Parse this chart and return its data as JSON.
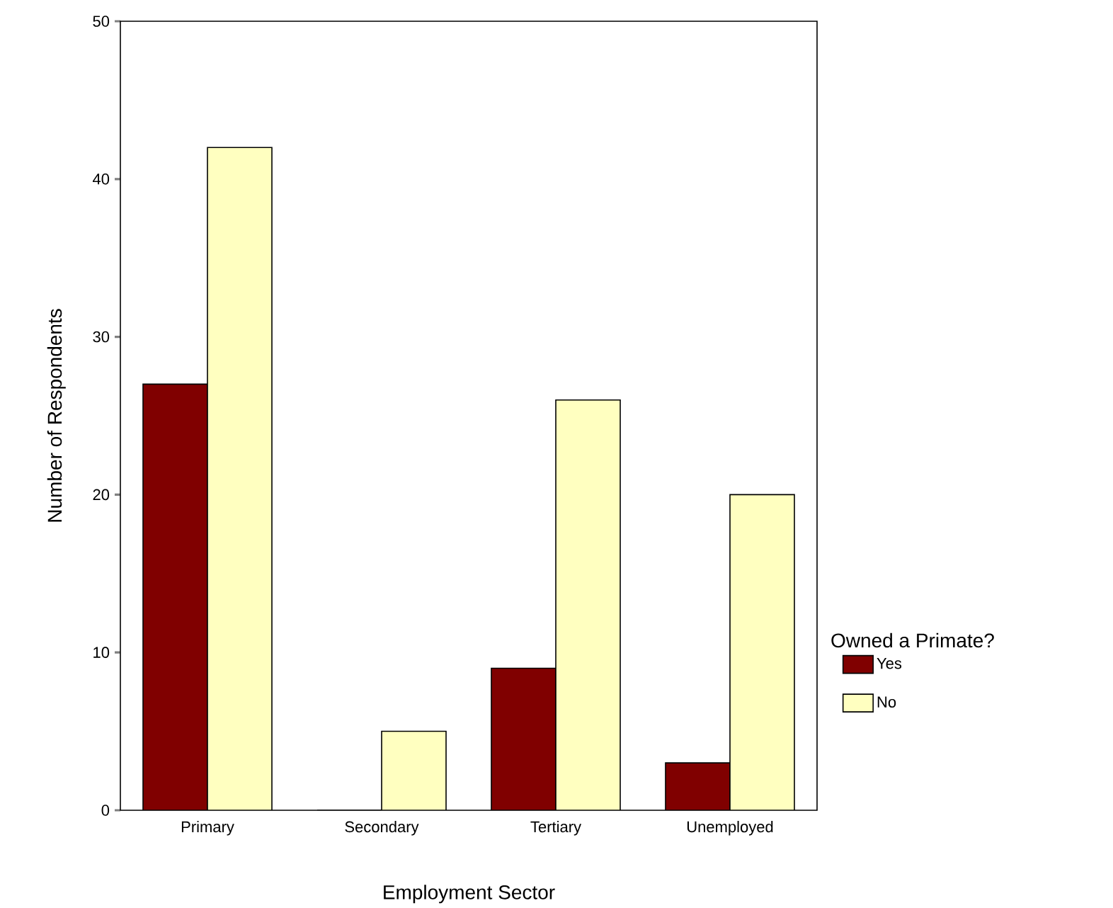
{
  "chart_data": {
    "type": "bar",
    "xlabel": "Employment Sector",
    "ylabel": "Number of Respondents",
    "legend_title": "Owned a Primate?",
    "categories": [
      "Primary",
      "Secondary",
      "Tertiary",
      "Unemployed"
    ],
    "series": [
      {
        "name": "Yes",
        "color": "#800000",
        "values": [
          27,
          0,
          9,
          3
        ]
      },
      {
        "name": "No",
        "color": "#ffffc0",
        "values": [
          42,
          5,
          26,
          20
        ]
      }
    ],
    "ylim": [
      0,
      50
    ],
    "yticks": [
      0,
      10,
      20,
      30,
      40,
      50
    ],
    "legend": "right"
  }
}
